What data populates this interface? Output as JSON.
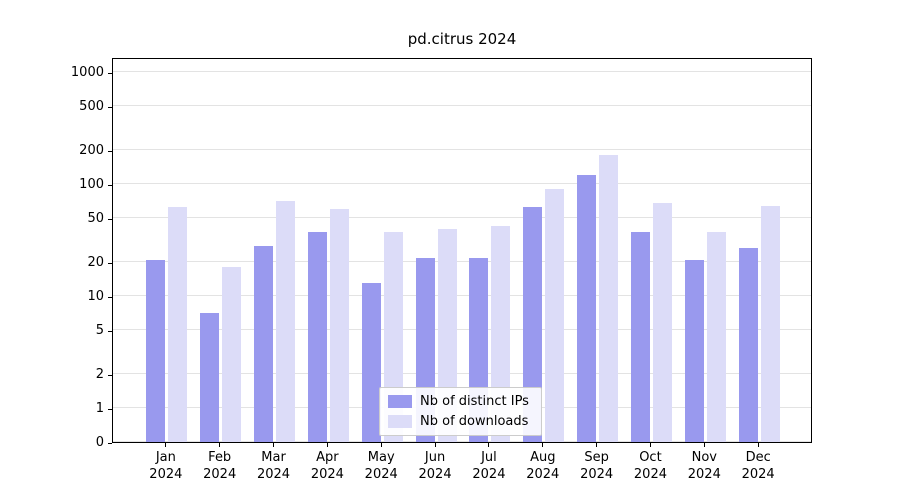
{
  "title": "pd.citrus 2024",
  "colors": {
    "ips": "#9999ee",
    "downloads": "#dcdcf8",
    "grid": "#e3e3e3",
    "axis": "#000000"
  },
  "legend": {
    "items": [
      {
        "label": "Nb of distinct IPs",
        "series": "ips"
      },
      {
        "label": "Nb of downloads",
        "series": "downloads"
      }
    ]
  },
  "chart_data": {
    "type": "bar",
    "title": "pd.citrus 2024",
    "categories": [
      "Jan 2024",
      "Feb 2024",
      "Mar 2024",
      "Apr 2024",
      "May 2024",
      "Jun 2024",
      "Jul 2024",
      "Aug 2024",
      "Sep 2024",
      "Oct 2024",
      "Nov 2024",
      "Dec 2024"
    ],
    "series": [
      {
        "name": "Nb of distinct IPs",
        "color_key": "ips",
        "values": [
          21,
          7,
          28,
          37,
          13,
          22,
          22,
          62,
          120,
          37,
          21,
          27
        ]
      },
      {
        "name": "Nb of downloads",
        "color_key": "downloads",
        "values": [
          62,
          18,
          70,
          60,
          37,
          40,
          42,
          90,
          180,
          68,
          37,
          64
        ]
      }
    ],
    "yscale": "symlog",
    "yticks": [
      0,
      1,
      2,
      5,
      10,
      20,
      50,
      100,
      200,
      500,
      1000
    ],
    "ylim": [
      0,
      1300
    ],
    "grid": true,
    "legend_position": "lower center",
    "xlabel": "",
    "ylabel": ""
  }
}
